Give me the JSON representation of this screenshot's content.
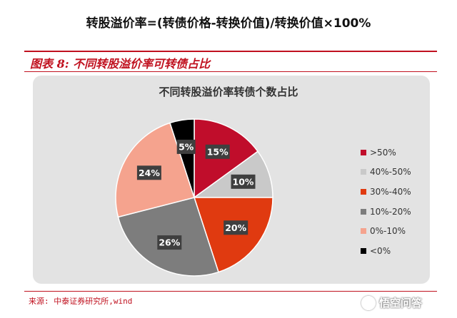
{
  "header": {
    "formula": "转股溢价率=(转债价格-转换价值)/转换价值×100%"
  },
  "figure": {
    "title": "图表 8:  不同转股溢价率可转债占比",
    "source": "来源: 中泰证券研究所,wind"
  },
  "watermark": {
    "text": "悟空问答"
  },
  "chart_data": {
    "type": "pie",
    "title": "不同转股溢价率转债个数占比",
    "legend_position": "right",
    "slices": [
      {
        "label": ">50%",
        "value": 15,
        "display": "15%",
        "color": "#c00d2b"
      },
      {
        "label": "40%-50%",
        "value": 10,
        "display": "10%",
        "color": "#c9c9c9"
      },
      {
        "label": "30%-40%",
        "value": 20,
        "display": "20%",
        "color": "#e03a10"
      },
      {
        "label": "10%-20%",
        "value": 26,
        "display": "26%",
        "color": "#7d7d7d"
      },
      {
        "label": "0%-10%",
        "value": 24,
        "display": "24%",
        "color": "#f5a38e"
      },
      {
        "label": "<0%",
        "value": 5,
        "display": "5%",
        "color": "#000000"
      }
    ]
  }
}
